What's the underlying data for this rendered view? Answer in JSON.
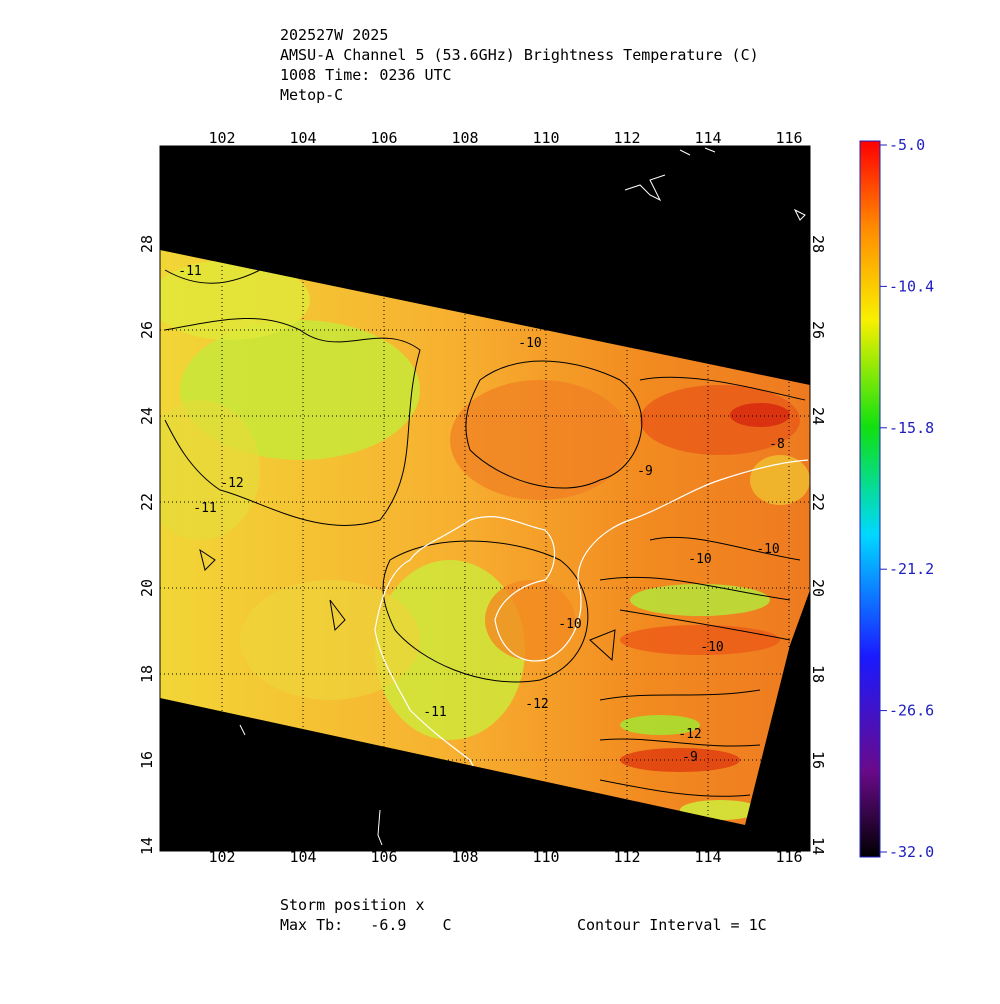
{
  "header": {
    "lines": [
      "202527W 2025",
      "AMSU-A Channel 5 (53.6GHz) Brightness Temperature (C)",
      "1008 Time: 0236 UTC",
      "Metop-C"
    ]
  },
  "map": {
    "lon_labels": [
      "102",
      "104",
      "106",
      "108",
      "110",
      "112",
      "114",
      "116"
    ],
    "lat_labels": [
      "14",
      "16",
      "18",
      "20",
      "22",
      "24",
      "26",
      "28"
    ],
    "contour_labels": [
      "-11",
      "-10",
      "-12",
      "-11",
      "-9",
      "-8",
      "-10",
      "-10",
      "-10",
      "-10",
      "-12",
      "-11",
      "-12",
      "-9"
    ]
  },
  "colorbar": {
    "labels": [
      "-5.0",
      "-10.4",
      "-15.8",
      "-21.2",
      "-26.6",
      "-32.0"
    ]
  },
  "footer": {
    "storm": "Storm position x",
    "max_tb": "Max Tb:   -6.9    C",
    "contour_interval": "Contour Interval = 1C"
  }
}
